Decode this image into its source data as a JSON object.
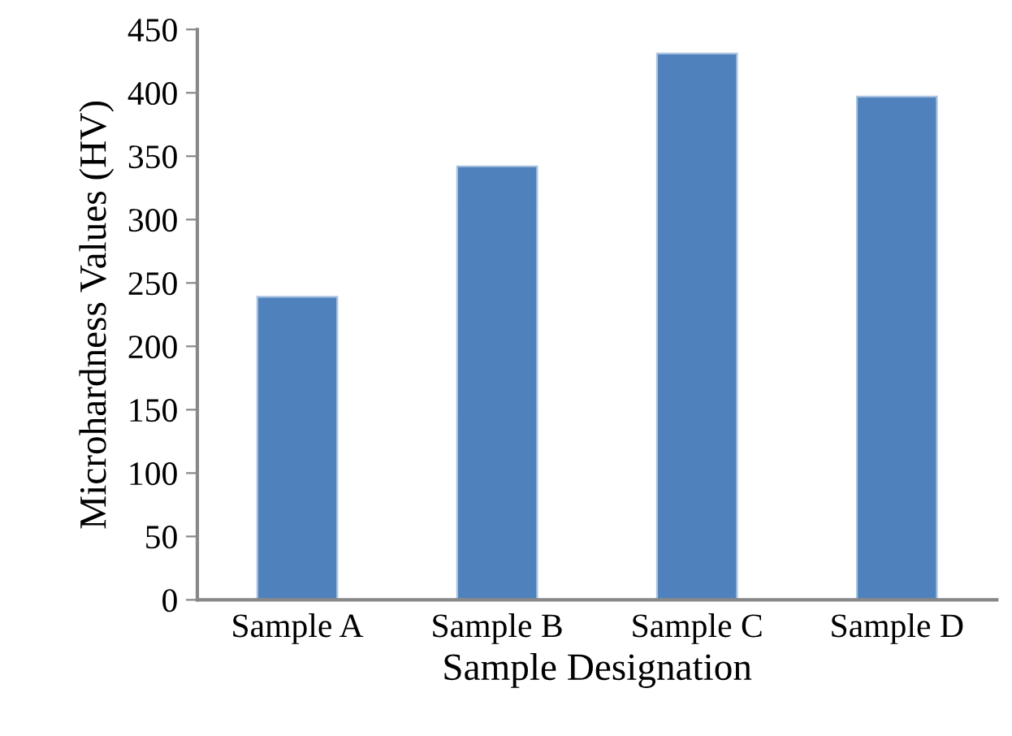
{
  "chart_data": {
    "type": "bar",
    "xlabel": "Sample Designation",
    "ylabel": "Microhardness Values (HV)",
    "categories": [
      "Sample A",
      "Sample B",
      "Sample C",
      "Sample D"
    ],
    "values": [
      239,
      342,
      431,
      397
    ],
    "color": "#4f81bd",
    "ylim": [
      0,
      450
    ],
    "yticks": [
      0,
      50,
      100,
      150,
      200,
      250,
      300,
      350,
      400,
      450
    ],
    "grid": false
  }
}
